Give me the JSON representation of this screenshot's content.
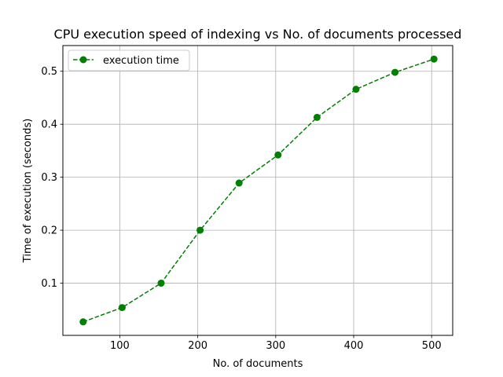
{
  "chart_data": {
    "type": "line",
    "title": "CPU execution speed of indexing vs No. of documents processed",
    "xlabel": "No. of documents",
    "ylabel": "Time of execution (seconds)",
    "xlim": [
      27,
      527
    ],
    "ylim": [
      0.0015,
      0.5485
    ],
    "xticks": [
      100,
      200,
      300,
      400,
      500
    ],
    "yticks": [
      0.1,
      0.2,
      0.3,
      0.4,
      0.5
    ],
    "xtick_labels": [
      "100",
      "200",
      "300",
      "400",
      "500"
    ],
    "ytick_labels": [
      "0.1",
      "0.2",
      "0.3",
      "0.4",
      "0.5"
    ],
    "grid": true,
    "legend_position": "top-left",
    "series": [
      {
        "name": "execution time",
        "color": "#008000",
        "line_style": "dashed",
        "marker": "circle",
        "x": [
          53,
          103,
          153,
          203,
          253,
          303,
          353,
          403,
          453,
          503
        ],
        "y": [
          0.027,
          0.054,
          0.1,
          0.2,
          0.289,
          0.342,
          0.413,
          0.466,
          0.498,
          0.523
        ]
      }
    ]
  }
}
